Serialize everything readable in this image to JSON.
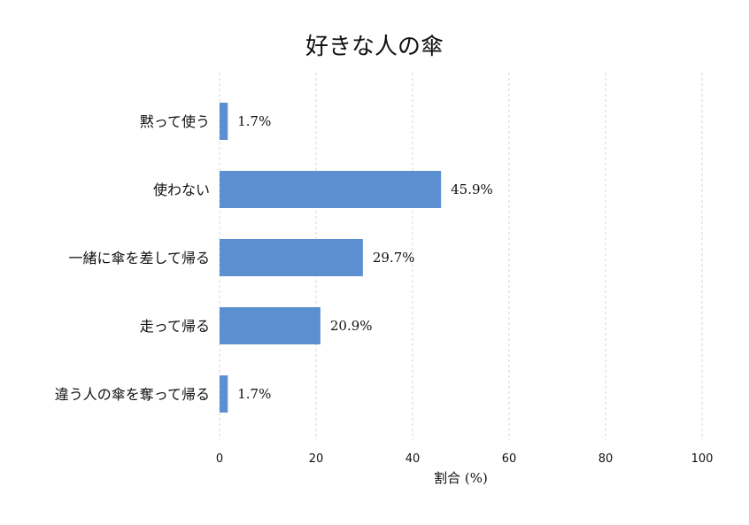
{
  "chart_data": {
    "type": "bar",
    "orientation": "horizontal",
    "title": "好きな人の傘",
    "xlabel": "割合 (%)",
    "ylabel": "",
    "categories": [
      "黙って使う",
      "使わない",
      "一緒に傘を差して帰る",
      "走って帰る",
      "違う人の傘を奪って帰る"
    ],
    "values": [
      1.7,
      45.9,
      29.7,
      20.9,
      1.7
    ],
    "value_labels": [
      "1.7%",
      "45.9%",
      "29.7%",
      "20.9%",
      "1.7%"
    ],
    "xlim": [
      0,
      100
    ],
    "xticks": [
      0,
      20,
      40,
      60,
      80,
      100
    ],
    "grid": "vertical dashed",
    "bar_color": "#5b8fd0",
    "grid_color": "#cccccc"
  }
}
